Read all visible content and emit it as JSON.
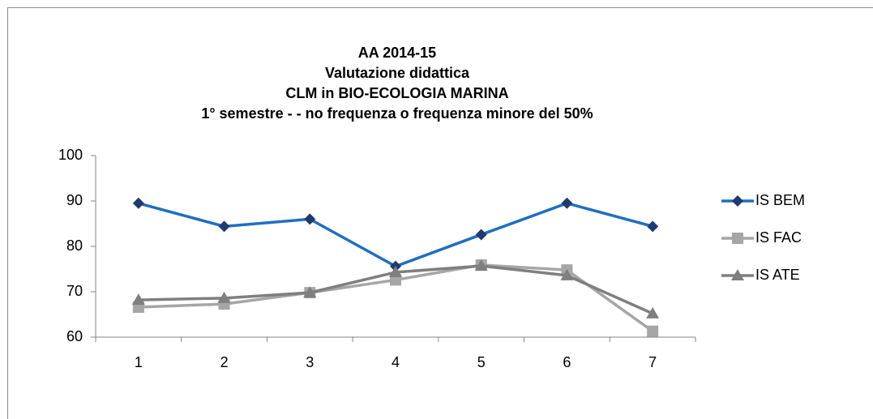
{
  "chart_data": {
    "type": "line",
    "title": [
      "AA 2014-15",
      "Valutazione didattica",
      "CLM in BIO-ECOLOGIA MARINA",
      "1° semestre - - no frequenza o frequenza minore del 50%"
    ],
    "categories": [
      1,
      2,
      3,
      4,
      5,
      6,
      7
    ],
    "series": [
      {
        "name": "IS BEM",
        "color": "#1f6fbf",
        "marker_color": "#1f3a6e",
        "marker": "diamond",
        "values": [
          89.5,
          84.4,
          86,
          75.6,
          82.6,
          89.5,
          84.4
        ]
      },
      {
        "name": "IS FAC",
        "color": "#a6a6a6",
        "marker_color": "#a6a6a6",
        "marker": "square",
        "values": [
          66.6,
          67.3,
          69.8,
          72.6,
          75.9,
          74.8,
          61.3
        ]
      },
      {
        "name": "IS ATE",
        "color": "#7f7f7f",
        "marker_color": "#7f7f7f",
        "marker": "triangle",
        "values": [
          68.2,
          68.6,
          69.8,
          74.3,
          75.7,
          73.6,
          65.2
        ]
      }
    ],
    "ylim": [
      60,
      100
    ],
    "yticks": [
      60,
      70,
      80,
      90,
      100
    ],
    "grid": false,
    "legend": "right"
  }
}
